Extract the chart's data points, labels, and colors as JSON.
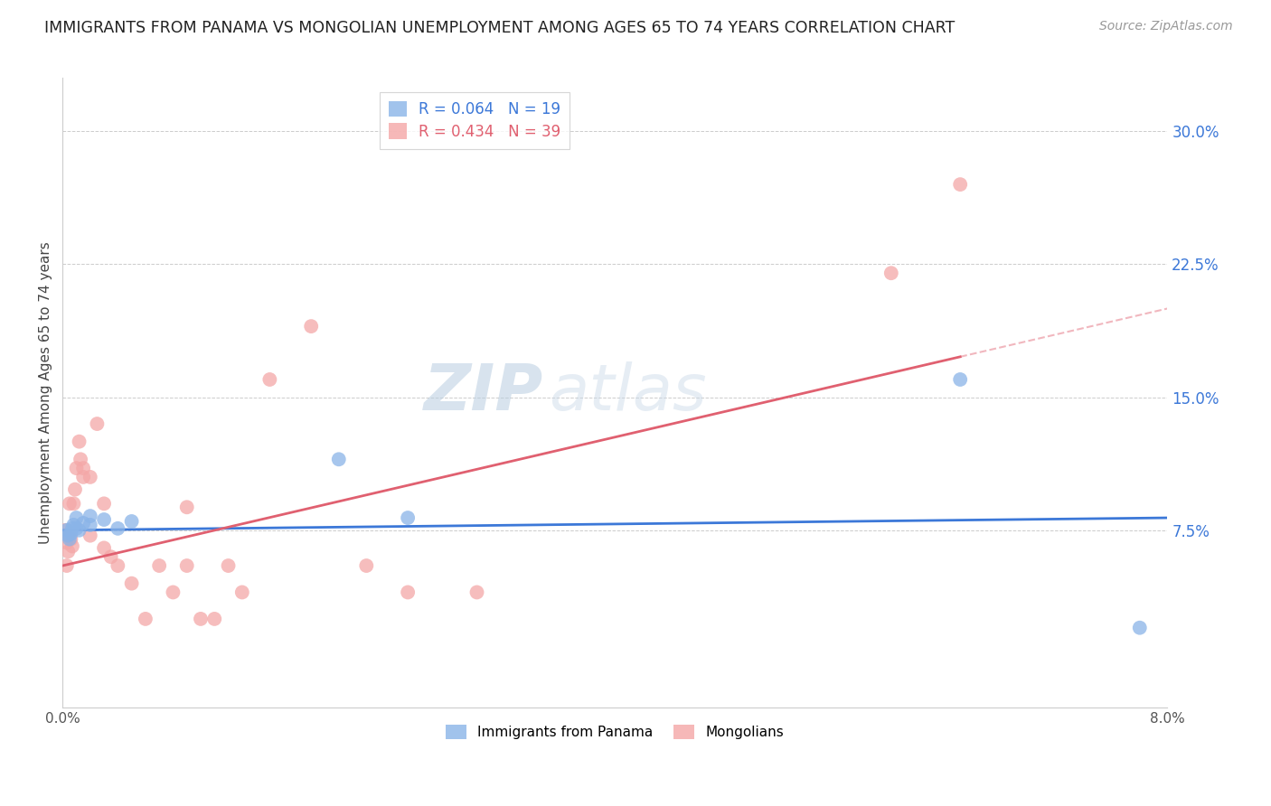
{
  "title": "IMMIGRANTS FROM PANAMA VS MONGOLIAN UNEMPLOYMENT AMONG AGES 65 TO 74 YEARS CORRELATION CHART",
  "source": "Source: ZipAtlas.com",
  "ylabel": "Unemployment Among Ages 65 to 74 years",
  "y_ticks_right": [
    0.075,
    0.15,
    0.225,
    0.3
  ],
  "y_tick_labels_right": [
    "7.5%",
    "15.0%",
    "22.5%",
    "30.0%"
  ],
  "xlim": [
    0.0,
    0.08
  ],
  "ylim": [
    -0.025,
    0.33
  ],
  "panama_R": 0.064,
  "panama_N": 19,
  "mongolian_R": 0.434,
  "mongolian_N": 39,
  "panama_color": "#8ab4e8",
  "mongolian_color": "#f4a7a7",
  "panama_line_color": "#3c78d8",
  "mongolian_line_color": "#e06070",
  "watermark_text": "ZIP",
  "watermark_text2": "atlas",
  "panama_x": [
    0.0003,
    0.0004,
    0.0005,
    0.0006,
    0.0007,
    0.0008,
    0.001,
    0.001,
    0.0012,
    0.0015,
    0.002,
    0.002,
    0.003,
    0.004,
    0.005,
    0.02,
    0.025,
    0.065,
    0.078
  ],
  "panama_y": [
    0.075,
    0.072,
    0.07,
    0.073,
    0.076,
    0.078,
    0.082,
    0.076,
    0.075,
    0.079,
    0.083,
    0.078,
    0.081,
    0.076,
    0.08,
    0.115,
    0.082,
    0.16,
    0.02
  ],
  "mongolian_x": [
    0.0002,
    0.0003,
    0.0003,
    0.0004,
    0.0005,
    0.0005,
    0.0006,
    0.0007,
    0.0008,
    0.0009,
    0.001,
    0.0012,
    0.0013,
    0.0015,
    0.0015,
    0.002,
    0.002,
    0.0025,
    0.003,
    0.003,
    0.0035,
    0.004,
    0.005,
    0.006,
    0.007,
    0.008,
    0.009,
    0.009,
    0.01,
    0.011,
    0.012,
    0.013,
    0.015,
    0.018,
    0.022,
    0.025,
    0.03,
    0.06,
    0.065
  ],
  "mongolian_y": [
    0.075,
    0.068,
    0.055,
    0.063,
    0.072,
    0.09,
    0.07,
    0.066,
    0.09,
    0.098,
    0.11,
    0.125,
    0.115,
    0.105,
    0.11,
    0.105,
    0.072,
    0.135,
    0.09,
    0.065,
    0.06,
    0.055,
    0.045,
    0.025,
    0.055,
    0.04,
    0.088,
    0.055,
    0.025,
    0.025,
    0.055,
    0.04,
    0.16,
    0.19,
    0.055,
    0.04,
    0.04,
    0.22,
    0.27
  ]
}
